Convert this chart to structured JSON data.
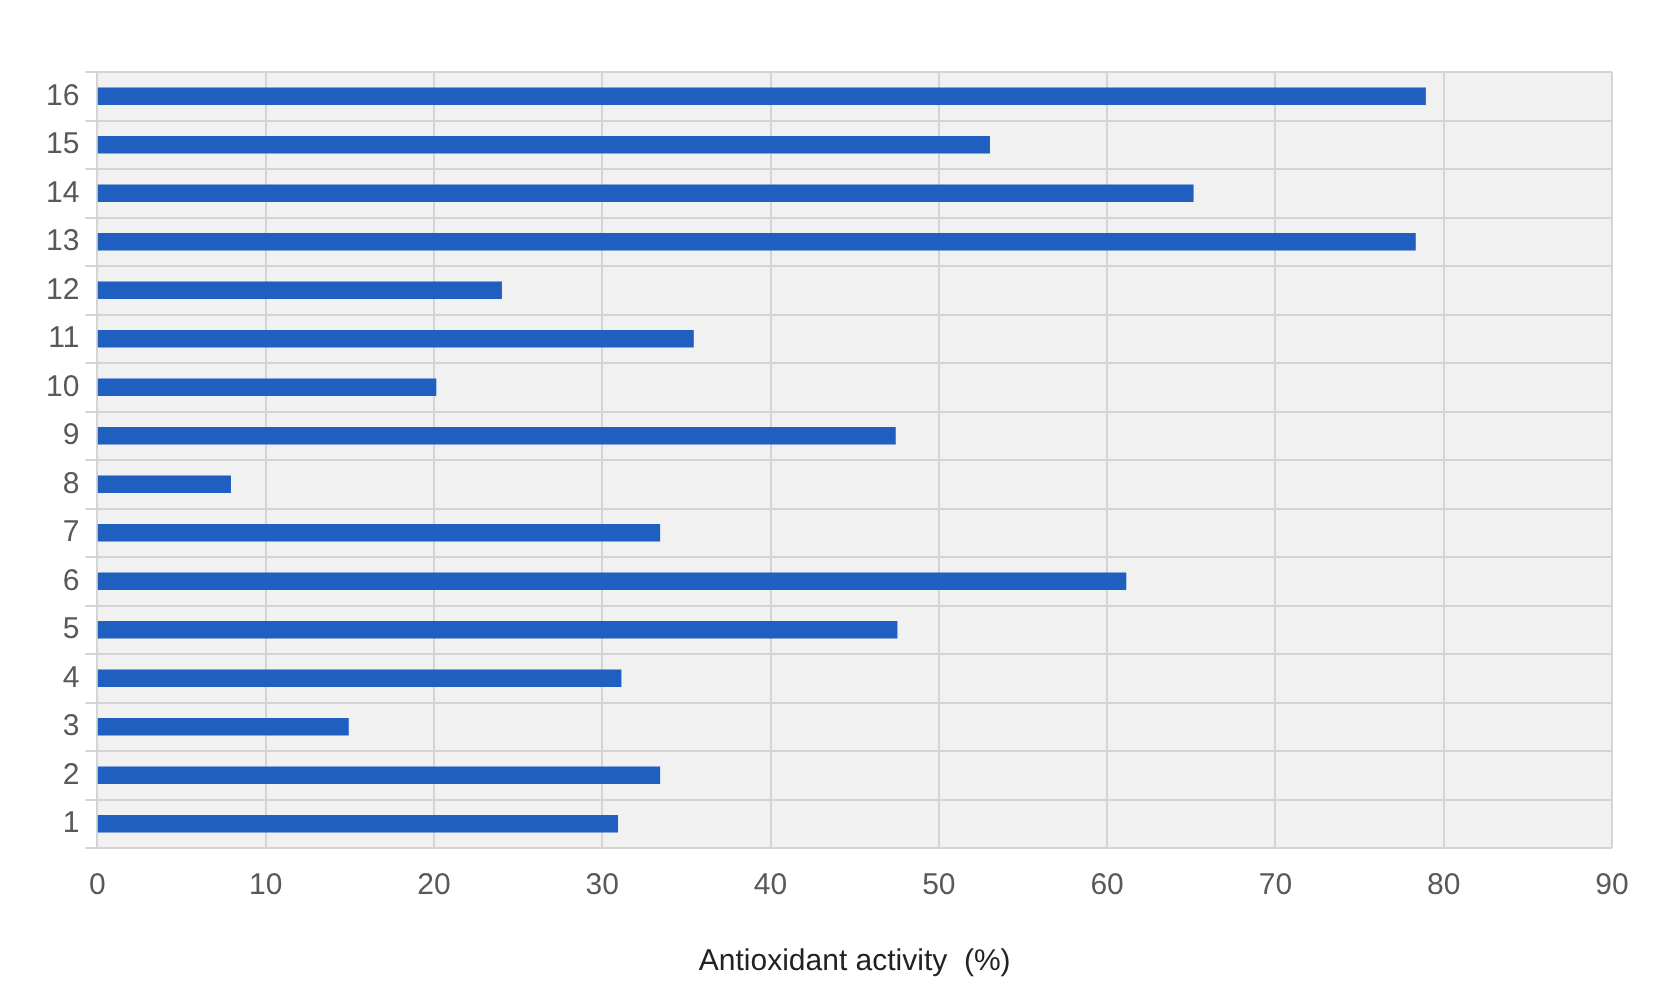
{
  "chart_data": {
    "type": "bar",
    "orientation": "horizontal",
    "xlabel": "Antioxidant activity  (%)",
    "categories": [
      "16",
      "15",
      "14",
      "13",
      "12",
      "11",
      "10",
      "9",
      "8",
      "7",
      "6",
      "5",
      "4",
      "3",
      "2",
      "1"
    ],
    "values": [
      78.9,
      53.0,
      65.1,
      78.3,
      24.0,
      35.4,
      20.1,
      47.4,
      7.9,
      33.4,
      61.1,
      47.5,
      31.1,
      14.9,
      33.4,
      30.9
    ],
    "color": "#1f5fbf",
    "xlim": [
      0,
      90
    ],
    "xticks": [
      0,
      10,
      20,
      30,
      40,
      50,
      60,
      70,
      80,
      90
    ],
    "grid": true
  }
}
